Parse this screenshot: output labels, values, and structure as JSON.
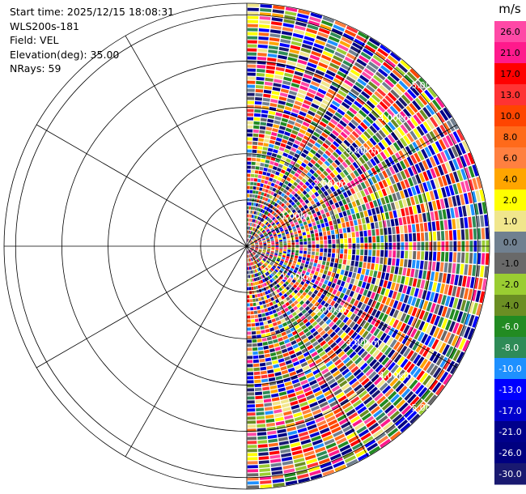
{
  "header": {
    "start_time": "Start time: 2025/12/15 18:08:31",
    "instrument": "WLS200s-181",
    "field": "Field: VEL",
    "elevation": "Elevation(deg): 35.00",
    "nrays": "NRays: 59"
  },
  "chart_data": {
    "type": "heatmap",
    "projection": "polar-ppi",
    "field": "VEL",
    "unit": "m/s",
    "elevation_deg": 35.0,
    "nrays": 59,
    "azimuth_coverage_deg": [
      0,
      180
    ],
    "range_rings_km": [
      1,
      2,
      3,
      4,
      5
    ],
    "range_ring_labels": [
      "1.00km",
      "2.00km",
      "3.00km",
      "4.00km",
      "5.00km"
    ],
    "max_range_km": 5.25,
    "spoke_angles_deg": [
      0,
      30,
      60,
      90,
      120,
      150,
      180,
      210,
      240,
      270,
      300,
      330
    ],
    "colorbar": {
      "unit_label": "m/s",
      "ticks": [
        "26.0",
        "21.0",
        "17.0",
        "13.0",
        "10.0",
        "8.0",
        "6.0",
        "4.0",
        "2.0",
        "1.0",
        "0.0",
        "-1.0",
        "-2.0",
        "-4.0",
        "-6.0",
        "-8.0",
        "-10.0",
        "-13.0",
        "-17.0",
        "-21.0",
        "-26.0",
        "-30.0"
      ],
      "colors": [
        "#ff49a6",
        "#ff1a8c",
        "#ff0000",
        "#ff3333",
        "#ff4500",
        "#ff6a1a",
        "#ff8040",
        "#ffa500",
        "#ffff00",
        "#f0e68c",
        "#708090",
        "#696969",
        "#9acd32",
        "#6b8e23",
        "#228b22",
        "#2e8b57",
        "#1e90ff",
        "#0000ff",
        "#0000cd",
        "#00008b",
        "#000080",
        "#191970"
      ]
    }
  }
}
